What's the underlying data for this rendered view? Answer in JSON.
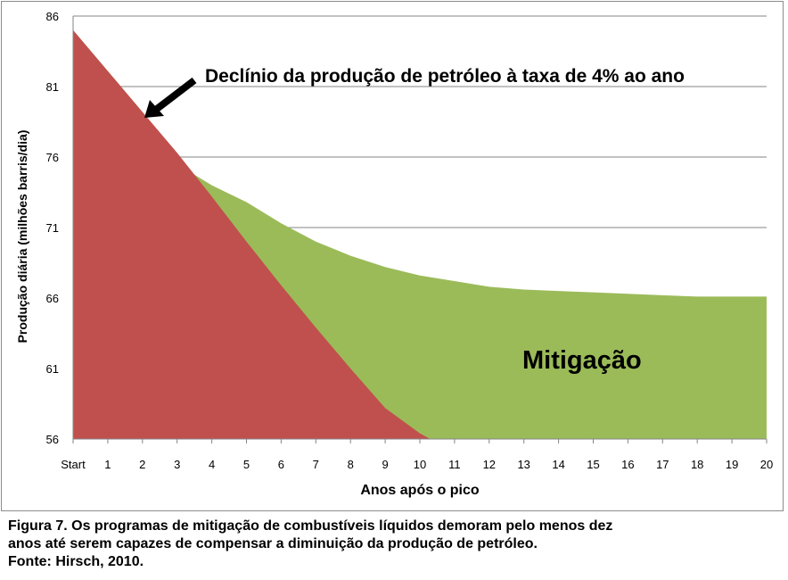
{
  "chart_data": {
    "type": "area",
    "title": "",
    "xlabel": "Anos após o pico",
    "ylabel": "Produção diária (milhões barris/dia)",
    "x_categories": [
      "Start",
      "1",
      "2",
      "3",
      "4",
      "5",
      "6",
      "7",
      "8",
      "9",
      "10",
      "11",
      "12",
      "13",
      "14",
      "15",
      "16",
      "17",
      "18",
      "19",
      "20"
    ],
    "yticks": [
      "86",
      "81",
      "76",
      "71",
      "66",
      "61",
      "56"
    ],
    "ylim": [
      56,
      86
    ],
    "grid": "horizontal",
    "series": [
      {
        "name": "",
        "color": "#c0504d",
        "x": [
          0,
          1,
          2,
          3,
          4,
          5,
          6,
          7,
          8,
          9,
          10,
          10.3,
          11,
          12,
          13,
          14,
          15,
          16,
          17,
          18,
          19,
          20
        ],
        "values": [
          85,
          82.1,
          79.2,
          76.3,
          73.2,
          70.0,
          66.9,
          63.9,
          61.0,
          58.2,
          56.4,
          56,
          56,
          56,
          56,
          56,
          56,
          56,
          56,
          56,
          56,
          56
        ]
      },
      {
        "name": "",
        "color": "#9bbb59",
        "x": [
          0,
          1,
          2,
          3,
          4,
          5,
          6,
          7,
          8,
          9,
          10,
          11,
          12,
          13,
          14,
          15,
          16,
          17,
          18,
          19,
          20
        ],
        "values": [
          85,
          82.1,
          79.2,
          75.5,
          74.0,
          72.8,
          71.3,
          70.0,
          69.0,
          68.2,
          67.6,
          67.2,
          66.8,
          66.6,
          66.5,
          66.4,
          66.3,
          66.2,
          66.1,
          66.1,
          66.1
        ]
      }
    ],
    "annotations": {
      "decline": "Declínio da produção de petróleo à taxa de 4% ao ano",
      "mitigation": "Mitigação"
    }
  },
  "caption": {
    "line1": "Figura 7.  Os programas de mitigação de combustíveis líquidos demoram pelo menos dez",
    "line2": "anos até serem capazes de compensar a diminuição da produção de petróleo.",
    "line3": "Fonte: Hirsch, 2010."
  },
  "colors": {
    "decline": "#c0504d",
    "mitigation": "#9bbb59",
    "grid": "#868686",
    "arrow": "#000000"
  }
}
